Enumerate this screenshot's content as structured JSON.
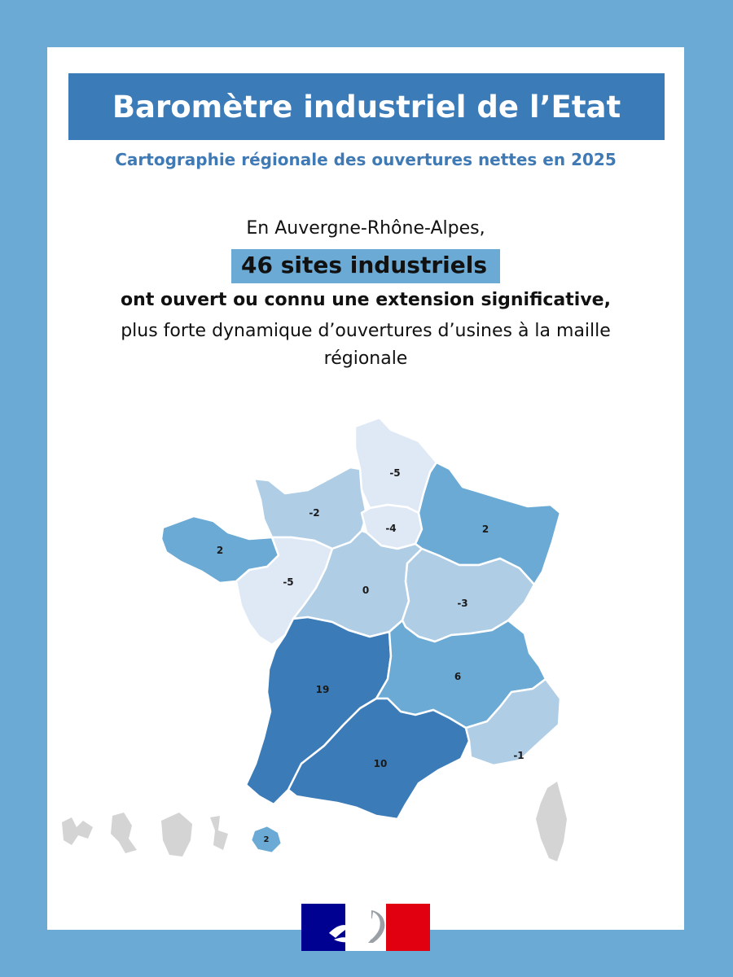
{
  "header": {
    "title": "Baromètre industriel de l’Etat",
    "subtitle": "Cartographie régionale des ouvertures nettes en 2025"
  },
  "intro": {
    "region_line": "En Auvergne-Rhône-Alpes,",
    "highlight": "46 sites industriels",
    "opened_line": "ont ouvert ou connu une extension significative,",
    "dynamic_line_1": "plus forte dynamique d’ouvertures d’usines à la maille",
    "dynamic_line_2": "régionale"
  },
  "colors": {
    "frame": "#6aaad4",
    "title_banner": "#3b7bb8",
    "scale_very_light": "#dfe9f5",
    "scale_light": "#b0cde6",
    "scale_mid": "#6aaad4",
    "scale_dark": "#3b7bb8",
    "territory_grey": "#d4d4d4"
  },
  "map": {
    "regions": [
      {
        "name": "Hauts-de-France",
        "value": "-5"
      },
      {
        "name": "Normandie",
        "value": "-2"
      },
      {
        "name": "Île-de-France",
        "value": "-4"
      },
      {
        "name": "Grand Est",
        "value": "2"
      },
      {
        "name": "Bretagne",
        "value": "2"
      },
      {
        "name": "Pays de la Loire",
        "value": "-5"
      },
      {
        "name": "Centre-Val de Loire",
        "value": "0"
      },
      {
        "name": "Bourgogne-Franche-Comté",
        "value": "-3"
      },
      {
        "name": "Nouvelle-Aquitaine",
        "value": "19"
      },
      {
        "name": "Auvergne-Rhône-Alpes",
        "value": "6"
      },
      {
        "name": "Occitanie",
        "value": "10"
      },
      {
        "name": "Provence-Alpes-Côte d'Azur",
        "value": "-1"
      },
      {
        "name": "La Réunion",
        "value": "2"
      }
    ]
  },
  "logo": {
    "icon": "marianne-logo"
  }
}
